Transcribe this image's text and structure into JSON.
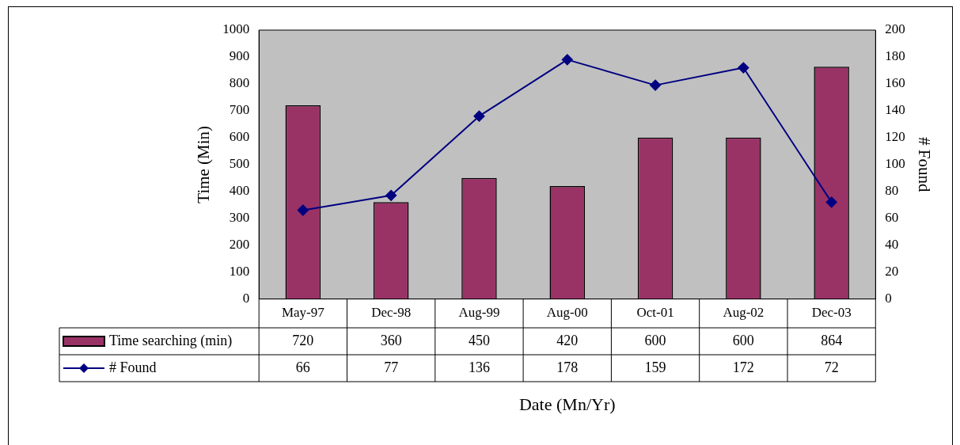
{
  "chart_data": {
    "type": "bar",
    "xlabel": "Date (Mn/Yr)",
    "ylabel": "Time (Min)",
    "y2label": "# Found",
    "categories": [
      "May-97",
      "Dec-98",
      "Aug-99",
      "Aug-00",
      "Oct-01",
      "Aug-02",
      "Dec-03"
    ],
    "series": [
      {
        "name": "Time searching (min)",
        "color": "#993366",
        "values": [
          720,
          360,
          450,
          420,
          600,
          600,
          864
        ]
      },
      {
        "name": "# Found",
        "type": "line",
        "axis": "y2",
        "color": "#000080",
        "values": [
          66,
          77,
          136,
          178,
          159,
          172,
          72
        ]
      }
    ],
    "ylim": [
      0,
      1000
    ],
    "yticks": [
      0,
      100,
      200,
      300,
      400,
      500,
      600,
      700,
      800,
      900,
      1000
    ],
    "y2lim": [
      0,
      200
    ],
    "y2ticks": [
      0,
      20,
      40,
      60,
      80,
      100,
      120,
      140,
      160,
      180,
      200
    ],
    "data_labels": true,
    "legend": "bottom",
    "marker": "diamond",
    "line_style": "solid"
  }
}
